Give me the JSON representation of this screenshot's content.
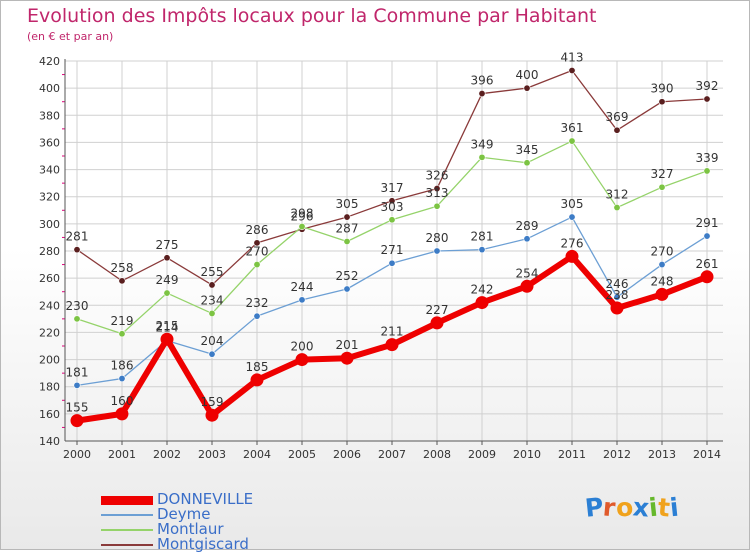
{
  "title": "Evolution des Impôts locaux pour la Commune par Habitant",
  "subtitle": "(en € et par an)",
  "colors": {
    "title": "#c0266b",
    "grid": "#d0d0d0",
    "axis": "#555555",
    "tick_mark": "#e0007a",
    "label": "#333333",
    "legend_text": "#3a6ec8"
  },
  "logo": {
    "text": "Proxiti",
    "letter_colors": [
      "#2b7fd4",
      "#e05a2b",
      "#f0a21c",
      "#2b7fd4",
      "#66b82c",
      "#f0a21c",
      "#2b7fd4"
    ]
  },
  "chart_data": {
    "type": "line",
    "title": "Evolution des Impôts locaux pour la Commune par Habitant",
    "subtitle": "(en € et par an)",
    "xlabel": "",
    "ylabel": "",
    "x": [
      "2000",
      "2001",
      "2002",
      "2003",
      "2004",
      "2005",
      "2006",
      "2007",
      "2008",
      "2009",
      "2010",
      "2011",
      "2012",
      "2013",
      "2014"
    ],
    "ylim": [
      140,
      420
    ],
    "yticks": [
      140,
      160,
      180,
      200,
      220,
      240,
      260,
      280,
      300,
      320,
      340,
      360,
      380,
      400,
      420
    ],
    "grid": true,
    "legend_position": "bottom-left",
    "series": [
      {
        "name": "DONNEVILLE",
        "color": "#ee0000",
        "width": 6,
        "values": [
          155,
          160,
          215,
          159,
          185,
          200,
          201,
          211,
          227,
          242,
          254,
          276,
          238,
          248,
          261
        ],
        "labels": [
          "155",
          "160",
          "215",
          "159",
          "185",
          "200",
          "201",
          "211",
          "227",
          "242",
          "254",
          "276",
          "238",
          "248",
          "261"
        ]
      },
      {
        "name": "Deyme",
        "color": "#6c9fd4",
        "marker": "#3d7cc6",
        "width": 1.3,
        "values": [
          181,
          186,
          214,
          204,
          232,
          244,
          252,
          271,
          280,
          281,
          289,
          305,
          246,
          270,
          291
        ],
        "labels": [
          "181",
          "186",
          "214",
          "204",
          "232",
          "244",
          "252",
          "271",
          "280",
          "281",
          "289",
          "305",
          "246",
          "270",
          "291"
        ]
      },
      {
        "name": "Montlaur",
        "color": "#95d36a",
        "marker": "#7cc443",
        "width": 1.3,
        "values": [
          230,
          219,
          249,
          234,
          270,
          298,
          287,
          303,
          313,
          349,
          345,
          361,
          312,
          327,
          339
        ],
        "labels": [
          "230",
          "219",
          "249",
          "234",
          "270",
          "298",
          "287",
          "303",
          "313",
          "349",
          "345",
          "361",
          "312",
          "327",
          "339"
        ]
      },
      {
        "name": "Montgiscard",
        "color": "#8a3a3a",
        "marker": "#5a1f1f",
        "width": 1.3,
        "values": [
          281,
          258,
          275,
          255,
          286,
          296,
          305,
          317,
          326,
          396,
          400,
          413,
          369,
          390,
          392
        ],
        "labels": [
          "281",
          "258",
          "275",
          "255",
          "286",
          "296",
          "305",
          "317",
          "326",
          "396",
          "400",
          "413",
          "369",
          "390",
          "392"
        ]
      }
    ]
  }
}
